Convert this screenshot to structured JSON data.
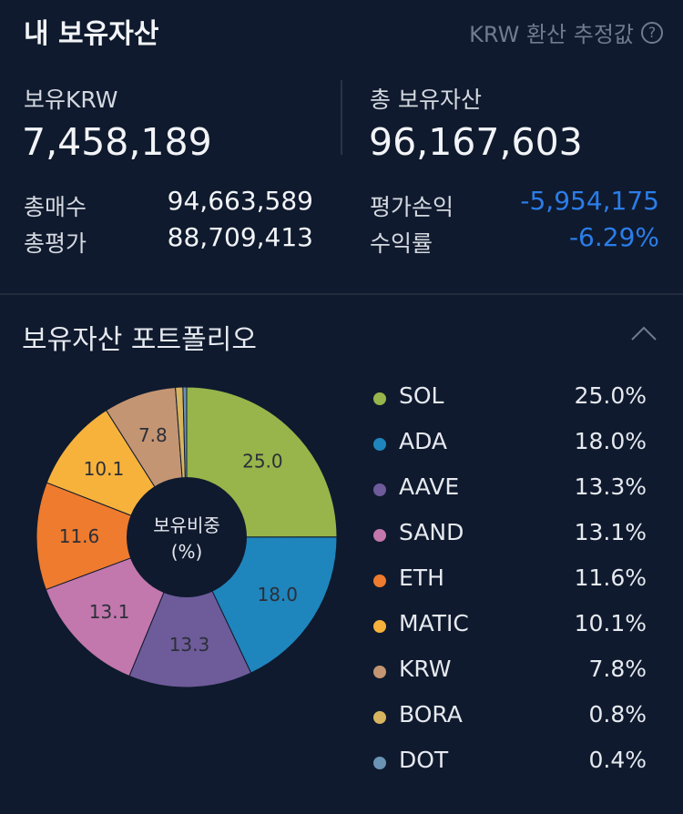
{
  "header": {
    "title": "내 보유자산",
    "krw_note": "KRW 환산 추정값"
  },
  "summary": {
    "krw_label": "보유KRW",
    "krw_value": "7,458,189",
    "total_label": "총 보유자산",
    "total_value": "96,167,603",
    "buy_label": "총매수",
    "buy_value": "94,663,589",
    "eval_label": "총평가",
    "eval_value": "88,709,413",
    "pnl_label": "평가손익",
    "pnl_value": "-5,954,175",
    "rate_label": "수익률",
    "rate_value": "-6.29%"
  },
  "portfolio": {
    "title": "보유자산 포트폴리오",
    "center_line1": "보유비중",
    "center_line2": "(%)"
  },
  "chart_data": {
    "type": "pie",
    "categories": [
      "SOL",
      "ADA",
      "AAVE",
      "SAND",
      "ETH",
      "MATIC",
      "KRW",
      "BORA",
      "DOT"
    ],
    "values": [
      25.0,
      18.0,
      13.3,
      13.1,
      11.6,
      10.1,
      7.8,
      0.8,
      0.4
    ],
    "labels": [
      "25.0",
      "18.0",
      "13.3",
      "13.1",
      "11.6",
      "10.1",
      "7.8",
      "",
      ""
    ],
    "colors": [
      "#97b54a",
      "#1f85bd",
      "#6e5b9a",
      "#c277ad",
      "#ee7b2e",
      "#f7b23b",
      "#c49573",
      "#d7b55f",
      "#6b93b3"
    ],
    "legend_pcts": [
      "25.0%",
      "18.0%",
      "13.3%",
      "13.1%",
      "11.6%",
      "10.1%",
      "7.8%",
      "0.8%",
      "0.4%"
    ]
  }
}
